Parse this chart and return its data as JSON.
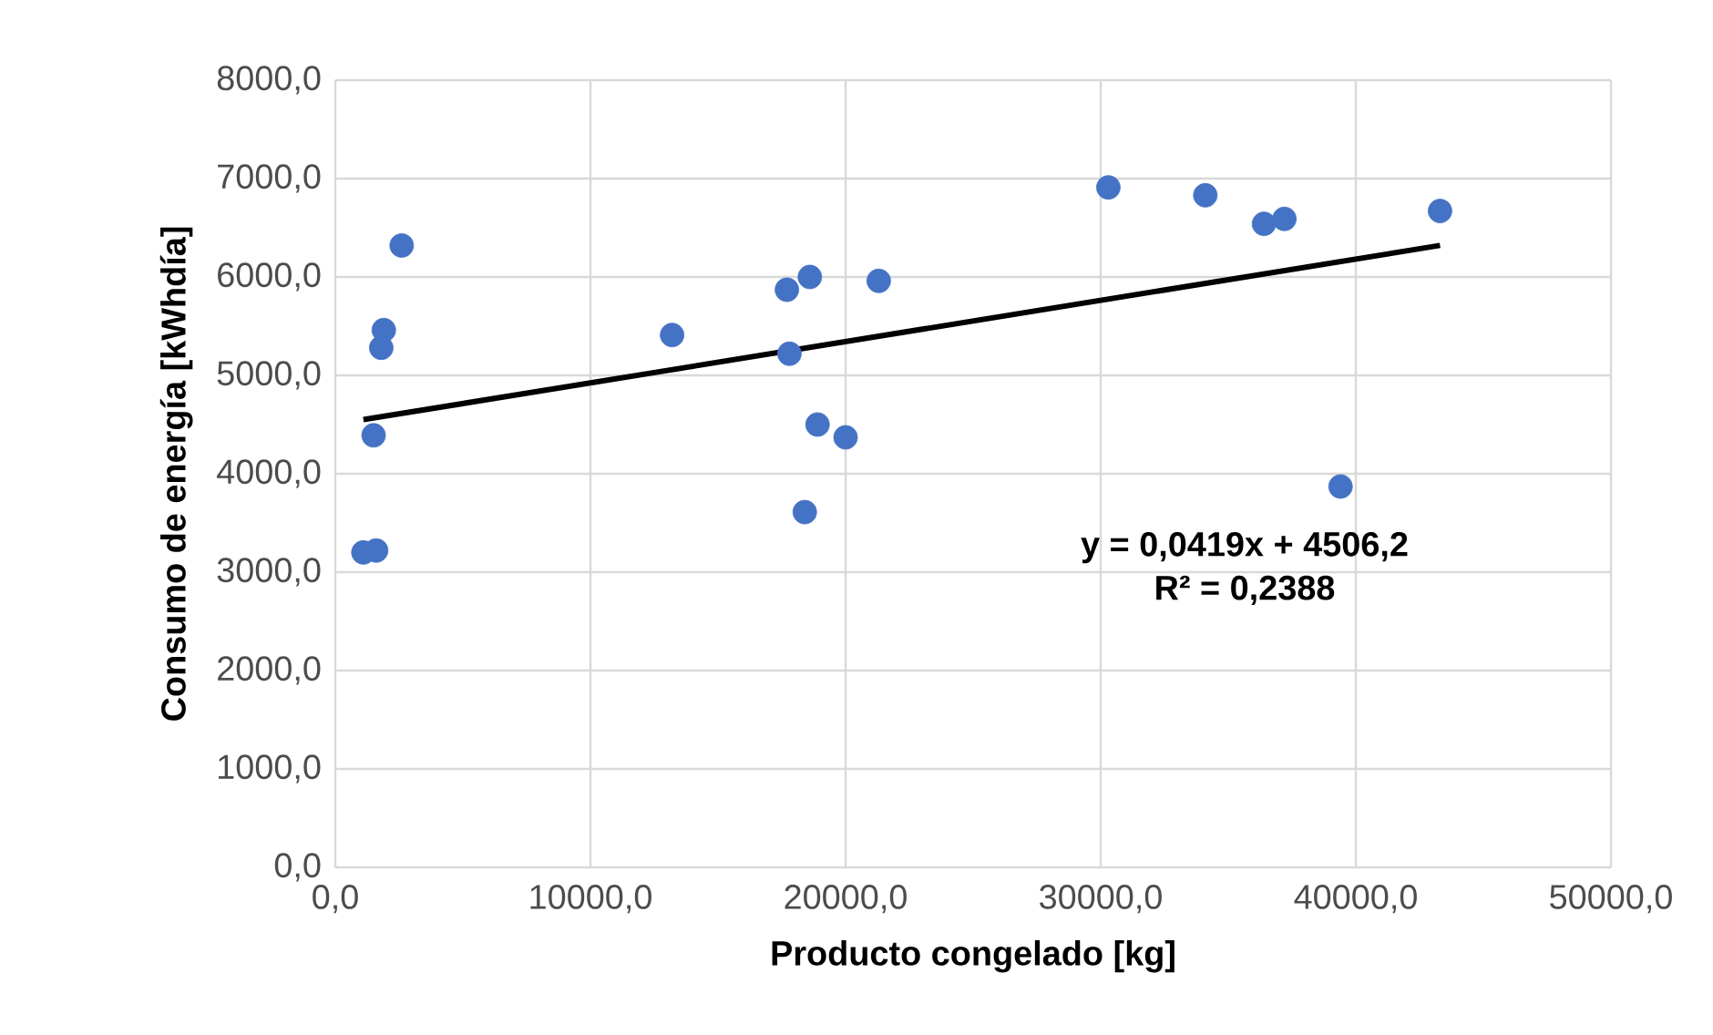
{
  "chart_data": {
    "type": "scatter",
    "xlabel": "Producto congelado [kg]",
    "ylabel": "Consumo  de energía [kWhdía]",
    "x": [
      1100,
      1600,
      1500,
      1800,
      1900,
      2600,
      13200,
      17700,
      18600,
      17800,
      18900,
      20000,
      18400,
      21300,
      30300,
      34100,
      36400,
      37200,
      39400,
      43300
    ],
    "series": [
      {
        "type": "scatter",
        "color": "#4472c4",
        "marker": "circle",
        "values": [
          3200,
          3220,
          4390,
          5280,
          5460,
          6320,
          5410,
          5870,
          6000,
          5220,
          4500,
          4370,
          3610,
          5960,
          6910,
          6830,
          6540,
          6590,
          3870,
          6670
        ]
      },
      {
        "type": "line",
        "color": "#000000",
        "marker": "none",
        "x": [
          1100,
          43300
        ],
        "values": [
          4550,
          6320
        ]
      }
    ],
    "xlim": [
      0,
      50000
    ],
    "ylim": [
      0,
      8000
    ],
    "xticks": [
      {
        "value": 0,
        "label": "0,0"
      },
      {
        "value": 10000,
        "label": "10000,0"
      },
      {
        "value": 20000,
        "label": "20000,0"
      },
      {
        "value": 30000,
        "label": "30000,0"
      },
      {
        "value": 40000,
        "label": "40000,0"
      },
      {
        "value": 50000,
        "label": "50000,0"
      }
    ],
    "yticks": [
      {
        "value": 0,
        "label": "0,0"
      },
      {
        "value": 1000,
        "label": "1000,0"
      },
      {
        "value": 2000,
        "label": "2000,0"
      },
      {
        "value": 3000,
        "label": "3000,0"
      },
      {
        "value": 4000,
        "label": "4000,0"
      },
      {
        "value": 5000,
        "label": "5000,0"
      },
      {
        "value": 6000,
        "label": "6000,0"
      },
      {
        "value": 7000,
        "label": "7000,0"
      },
      {
        "value": 8000,
        "label": "8000,0"
      }
    ],
    "grid": true,
    "annotations": [
      "y = 0,0419x + 4506,2",
      "R² = 0,2388"
    ]
  }
}
